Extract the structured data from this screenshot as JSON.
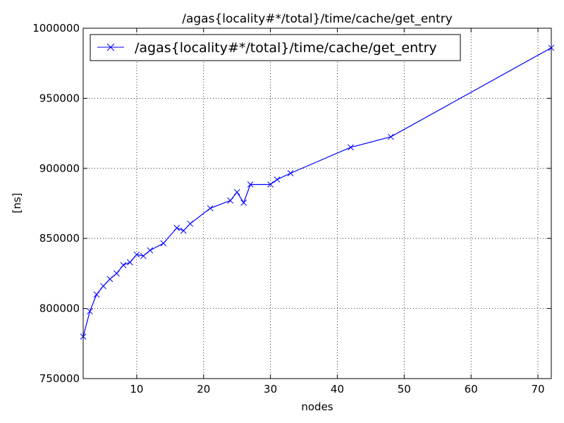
{
  "chart_data": {
    "type": "line",
    "title": "/agas{locality#*/total}/time/cache/get_entry",
    "xlabel": "nodes",
    "ylabel": "[ns]",
    "xlim": [
      2,
      72
    ],
    "ylim": [
      750000,
      1000000
    ],
    "xticks": [
      10,
      20,
      30,
      40,
      50,
      60,
      70
    ],
    "yticks": [
      750000,
      800000,
      850000,
      900000,
      950000,
      1000000
    ],
    "grid": true,
    "legend_position": "top-left",
    "series": [
      {
        "name": "/agas{locality#*/total}/time/cache/get_entry",
        "color": "#0000ff",
        "marker": "x",
        "x": [
          2,
          3,
          4,
          5,
          6,
          7,
          8,
          9,
          10,
          11,
          12,
          14,
          16,
          17,
          18,
          21,
          24,
          25,
          26,
          27,
          30,
          31,
          33,
          42,
          48,
          72
        ],
        "y": [
          780000,
          798000,
          810000,
          816000,
          821000,
          825000,
          831000,
          833000,
          838500,
          837500,
          841500,
          846500,
          857500,
          855500,
          860500,
          871500,
          877000,
          883000,
          875500,
          888500,
          888500,
          892000,
          896500,
          915000,
          922500,
          986000
        ]
      }
    ]
  }
}
